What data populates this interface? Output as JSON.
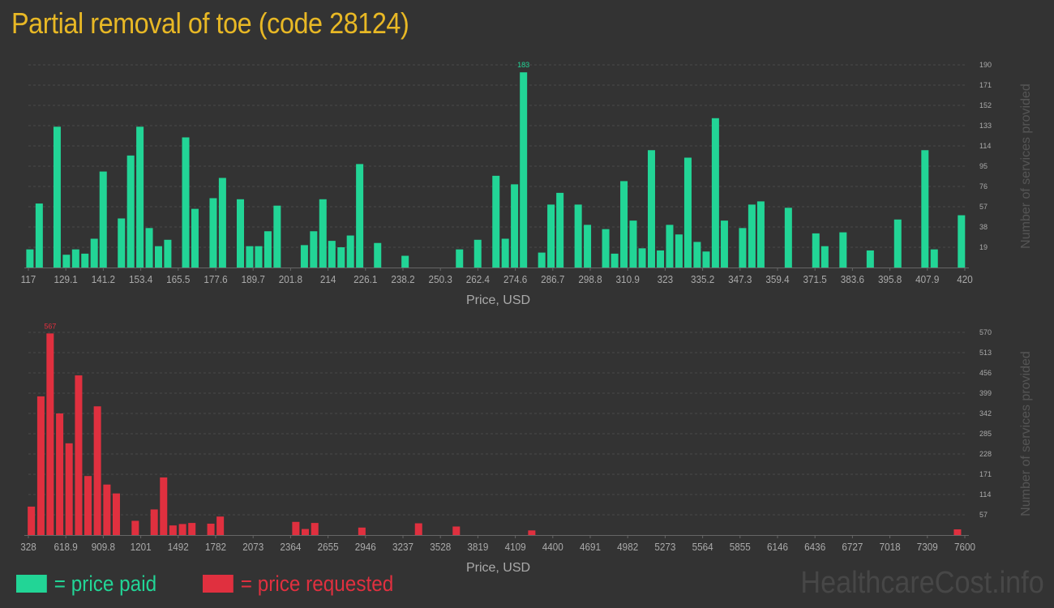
{
  "title": "Partial removal of toe (code 28124)",
  "legend": {
    "paid": "= price paid",
    "requested": "= price requested"
  },
  "watermark": "HealthcareCost.info",
  "colors": {
    "paid": "#22d596",
    "requested": "#e0303f",
    "title": "#e8b825",
    "background": "#333333"
  },
  "chart_data": [
    {
      "type": "bar",
      "id": "paid",
      "xlabel": "Price, USD",
      "ylabel": "Number of services provided",
      "x_ticks": [
        "117",
        "129.1",
        "141.2",
        "153.4",
        "165.5",
        "177.6",
        "189.7",
        "201.8",
        "214",
        "226.1",
        "238.2",
        "250.3",
        "262.4",
        "274.6",
        "286.7",
        "298.8",
        "310.9",
        "323",
        "335.2",
        "347.3",
        "359.4",
        "371.5",
        "383.6",
        "395.8",
        "407.9",
        "420"
      ],
      "y_ticks": [
        "19",
        "38",
        "57",
        "76",
        "95",
        "114",
        "133",
        "152",
        "171",
        "190"
      ],
      "ylim": [
        0,
        190
      ],
      "xlim": [
        117,
        420
      ],
      "grid": true,
      "peak_label": "183",
      "color": "#22d596",
      "bars": [
        {
          "x": 117.5,
          "y": 17
        },
        {
          "x": 120.5,
          "y": 60
        },
        {
          "x": 126.3,
          "y": 132
        },
        {
          "x": 129.3,
          "y": 12
        },
        {
          "x": 132.3,
          "y": 17
        },
        {
          "x": 135.3,
          "y": 13
        },
        {
          "x": 138.3,
          "y": 27
        },
        {
          "x": 141.2,
          "y": 90
        },
        {
          "x": 147.1,
          "y": 46
        },
        {
          "x": 150.1,
          "y": 105
        },
        {
          "x": 153.1,
          "y": 132
        },
        {
          "x": 156.1,
          "y": 37
        },
        {
          "x": 159.1,
          "y": 20
        },
        {
          "x": 162.1,
          "y": 26
        },
        {
          "x": 167.9,
          "y": 122
        },
        {
          "x": 170.9,
          "y": 55
        },
        {
          "x": 176.8,
          "y": 65
        },
        {
          "x": 179.8,
          "y": 84
        },
        {
          "x": 185.6,
          "y": 64
        },
        {
          "x": 188.6,
          "y": 20
        },
        {
          "x": 191.5,
          "y": 20
        },
        {
          "x": 194.5,
          "y": 34
        },
        {
          "x": 197.5,
          "y": 58
        },
        {
          "x": 206.3,
          "y": 21
        },
        {
          "x": 209.3,
          "y": 34
        },
        {
          "x": 212.3,
          "y": 64
        },
        {
          "x": 215.2,
          "y": 25
        },
        {
          "x": 218.2,
          "y": 19
        },
        {
          "x": 221.2,
          "y": 30
        },
        {
          "x": 224.2,
          "y": 97
        },
        {
          "x": 230,
          "y": 23
        },
        {
          "x": 238.9,
          "y": 11
        },
        {
          "x": 256.5,
          "y": 17
        },
        {
          "x": 262.4,
          "y": 26
        },
        {
          "x": 268.3,
          "y": 86
        },
        {
          "x": 271.3,
          "y": 27
        },
        {
          "x": 274.3,
          "y": 78
        },
        {
          "x": 277.2,
          "y": 183
        },
        {
          "x": 283.1,
          "y": 14
        },
        {
          "x": 286.1,
          "y": 59
        },
        {
          "x": 289,
          "y": 70
        },
        {
          "x": 294.9,
          "y": 59
        },
        {
          "x": 297.9,
          "y": 40
        },
        {
          "x": 303.8,
          "y": 36
        },
        {
          "x": 306.7,
          "y": 13
        },
        {
          "x": 309.7,
          "y": 81
        },
        {
          "x": 312.7,
          "y": 44
        },
        {
          "x": 315.6,
          "y": 18
        },
        {
          "x": 318.6,
          "y": 110
        },
        {
          "x": 321.5,
          "y": 16
        },
        {
          "x": 324.5,
          "y": 40
        },
        {
          "x": 327.5,
          "y": 31
        },
        {
          "x": 330.4,
          "y": 103
        },
        {
          "x": 333.4,
          "y": 24
        },
        {
          "x": 336.3,
          "y": 15
        },
        {
          "x": 339.3,
          "y": 140
        },
        {
          "x": 342.2,
          "y": 44
        },
        {
          "x": 348.1,
          "y": 37
        },
        {
          "x": 351.1,
          "y": 59
        },
        {
          "x": 354,
          "y": 62
        },
        {
          "x": 362.9,
          "y": 56
        },
        {
          "x": 371.8,
          "y": 32
        },
        {
          "x": 374.7,
          "y": 20
        },
        {
          "x": 380.6,
          "y": 33
        },
        {
          "x": 389.4,
          "y": 16
        },
        {
          "x": 398.3,
          "y": 45
        },
        {
          "x": 407.1,
          "y": 110
        },
        {
          "x": 410.1,
          "y": 17
        },
        {
          "x": 418.9,
          "y": 49
        }
      ]
    },
    {
      "type": "bar",
      "id": "requested",
      "xlabel": "Price, USD",
      "ylabel": "Number of services provided",
      "x_ticks": [
        "328",
        "618.9",
        "909.8",
        "1201",
        "1492",
        "1782",
        "2073",
        "2364",
        "2655",
        "2946",
        "3237",
        "3528",
        "3819",
        "4109",
        "4400",
        "4691",
        "4982",
        "5273",
        "5564",
        "5855",
        "6146",
        "6436",
        "6727",
        "7018",
        "7309",
        "7600"
      ],
      "y_ticks": [
        "57",
        "114",
        "171",
        "228",
        "285",
        "342",
        "399",
        "456",
        "513",
        "570"
      ],
      "ylim": [
        0,
        570
      ],
      "xlim": [
        328,
        7600
      ],
      "grid": true,
      "peak_label": "567",
      "color": "#e0303f",
      "bars": [
        {
          "x": 351,
          "y": 80
        },
        {
          "x": 425,
          "y": 390
        },
        {
          "x": 497,
          "y": 567
        },
        {
          "x": 571,
          "y": 342
        },
        {
          "x": 644,
          "y": 258
        },
        {
          "x": 718,
          "y": 449
        },
        {
          "x": 791,
          "y": 166
        },
        {
          "x": 864,
          "y": 362
        },
        {
          "x": 938,
          "y": 142
        },
        {
          "x": 1011,
          "y": 117
        },
        {
          "x": 1158,
          "y": 40
        },
        {
          "x": 1305,
          "y": 72
        },
        {
          "x": 1378,
          "y": 162
        },
        {
          "x": 1451,
          "y": 27
        },
        {
          "x": 1525,
          "y": 31
        },
        {
          "x": 1598,
          "y": 34
        },
        {
          "x": 1745,
          "y": 32
        },
        {
          "x": 1818,
          "y": 52
        },
        {
          "x": 2405,
          "y": 37
        },
        {
          "x": 2478,
          "y": 17
        },
        {
          "x": 2552,
          "y": 34
        },
        {
          "x": 2918,
          "y": 21
        },
        {
          "x": 3358,
          "y": 33
        },
        {
          "x": 3651,
          "y": 24
        },
        {
          "x": 4237,
          "y": 13
        },
        {
          "x": 7543,
          "y": 16
        }
      ]
    }
  ]
}
